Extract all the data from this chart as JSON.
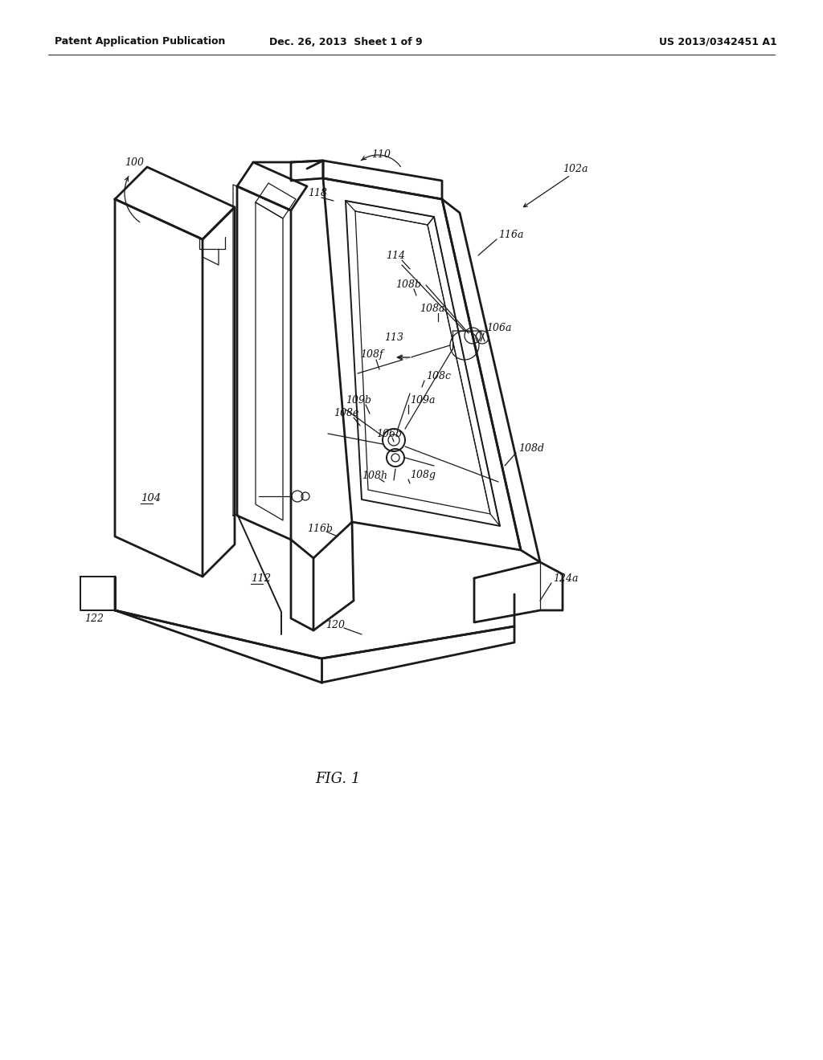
{
  "bg_color": "#ffffff",
  "header_left": "Patent Application Publication",
  "header_mid": "Dec. 26, 2013  Sheet 1 of 9",
  "header_right": "US 2013/0342451 A1",
  "fig_label": "FIG. 1"
}
